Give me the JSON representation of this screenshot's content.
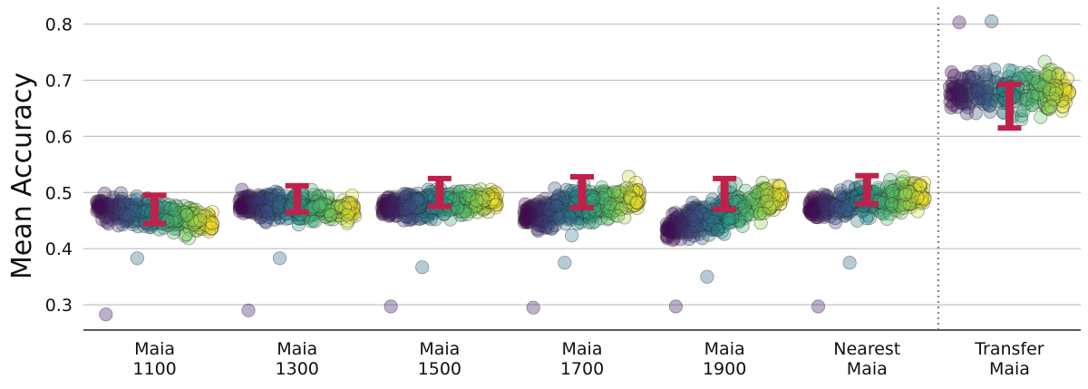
{
  "chart_data": {
    "type": "scatter",
    "title": "",
    "xlabel": "",
    "ylabel": "Mean Accuracy",
    "ylim": [
      0.255,
      0.83
    ],
    "yticks": [
      "0.3",
      "0.4",
      "0.5",
      "0.6",
      "0.7",
      "0.8"
    ],
    "grid": "horizontal",
    "legend": "none",
    "colormap": "viridis",
    "point_color_low": "#440154",
    "point_color_high": "#fde725",
    "errorbar_color": "#c0214a",
    "divider": "dotted line between Nearest Maia and Transfer Maia",
    "categories": [
      {
        "label_line1": "Maia",
        "label_line2": "1100",
        "mean": 0.47,
        "err_low": 0.445,
        "err_high": 0.495,
        "cloud_min": 0.38,
        "cloud_max": 0.54,
        "trend": -0.03,
        "outliers": [
          0.283,
          0.383
        ]
      },
      {
        "label_line1": "Maia",
        "label_line2": "1300",
        "mean": 0.488,
        "err_low": 0.465,
        "err_high": 0.512,
        "cloud_min": 0.4,
        "cloud_max": 0.55,
        "trend": -0.01,
        "outliers": [
          0.29,
          0.383
        ]
      },
      {
        "label_line1": "Maia",
        "label_line2": "1500",
        "mean": 0.5,
        "err_low": 0.475,
        "err_high": 0.525,
        "cloud_min": 0.4,
        "cloud_max": 0.56,
        "trend": 0.01,
        "outliers": [
          0.297,
          0.367
        ]
      },
      {
        "label_line1": "Maia",
        "label_line2": "1700",
        "mean": 0.5,
        "err_low": 0.473,
        "err_high": 0.528,
        "cloud_min": 0.38,
        "cloud_max": 0.57,
        "trend": 0.04,
        "outliers": [
          0.295,
          0.375
        ]
      },
      {
        "label_line1": "Maia",
        "label_line2": "1900",
        "mean": 0.495,
        "err_low": 0.47,
        "err_high": 0.525,
        "cloud_min": 0.36,
        "cloud_max": 0.57,
        "trend": 0.06,
        "outliers": [
          0.297,
          0.35
        ]
      },
      {
        "label_line1": "Nearest",
        "label_line2": "Maia",
        "mean": 0.505,
        "err_low": 0.48,
        "err_high": 0.53,
        "cloud_min": 0.4,
        "cloud_max": 0.57,
        "trend": 0.03,
        "outliers": [
          0.297,
          0.375
        ]
      },
      {
        "label_line1": "Transfer",
        "label_line2": "Maia",
        "mean": 0.655,
        "err_low": 0.615,
        "err_high": 0.693,
        "cloud_min": 0.555,
        "cloud_max": 0.805,
        "trend": 0.0,
        "outliers": [
          0.803,
          0.805
        ]
      }
    ]
  }
}
